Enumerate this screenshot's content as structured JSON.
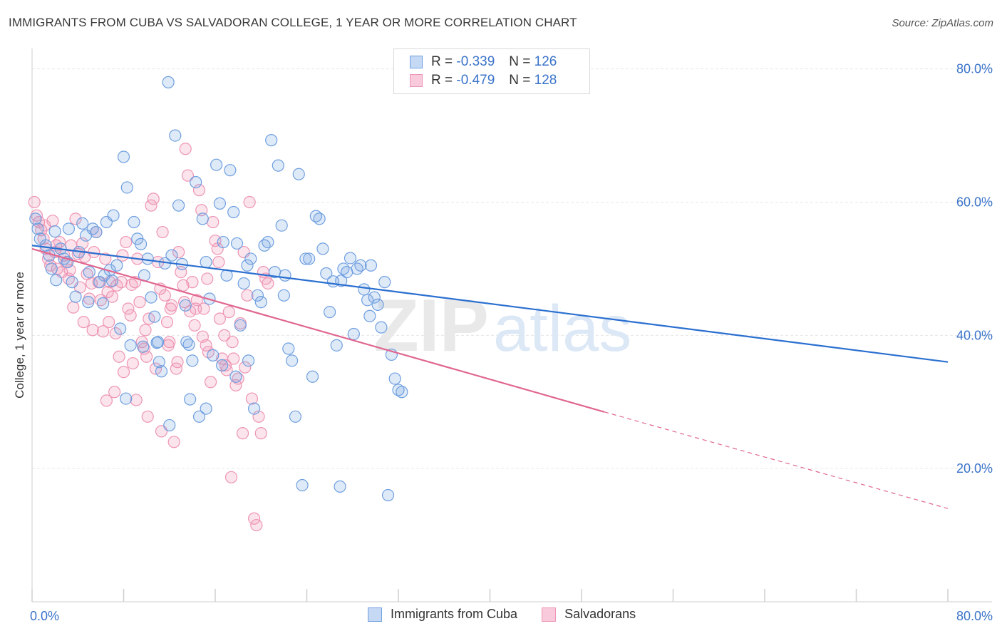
{
  "title": "IMMIGRANTS FROM CUBA VS SALVADORAN COLLEGE, 1 YEAR OR MORE CORRELATION CHART",
  "source": "Source: ZipAtlas.com",
  "watermark": {
    "zip": "ZIP",
    "atlas": "atlas"
  },
  "legend": {
    "r_label": "R =",
    "n_label": "N =",
    "series1": {
      "r": "-0.339",
      "n": "126"
    },
    "series2": {
      "r": "-0.479",
      "n": "128"
    }
  },
  "bottom_legend": {
    "series1": "Immigrants from Cuba",
    "series2": "Salvadorans"
  },
  "colors": {
    "blue": "#6f9fe0",
    "blue_line": "#2a6fd0",
    "pink": "#ee95b4",
    "pink_line": "#e0668f",
    "tick": "#3a73c9"
  },
  "chart_data": {
    "type": "scatter",
    "title": "IMMIGRANTS FROM CUBA VS SALVADORAN COLLEGE, 1 YEAR OR MORE CORRELATION CHART",
    "xlabel": "",
    "ylabel": "College, 1 year or more",
    "xlim": [
      0,
      80
    ],
    "ylim": [
      0,
      82
    ],
    "x_tick_labels": [
      "0.0%",
      "80.0%"
    ],
    "y_ticks": [
      20,
      40,
      60,
      80
    ],
    "y_tick_labels": [
      "20.0%",
      "40.0%",
      "60.0%",
      "80.0%"
    ],
    "grid": true,
    "series": [
      {
        "name": "Immigrants from Cuba",
        "r": -0.339,
        "n": 126,
        "trend": {
          "x": [
            0,
            80
          ],
          "y": [
            53.5,
            36.0
          ]
        },
        "points": [
          [
            0.3,
            57.5
          ],
          [
            0.5,
            56.0
          ],
          [
            0.7,
            54.5
          ],
          [
            1.2,
            53.5
          ],
          [
            1.5,
            52.0
          ],
          [
            1.7,
            50.0
          ],
          [
            2.1,
            48.3
          ],
          [
            2.5,
            53.0
          ],
          [
            2.8,
            51.5
          ],
          [
            3.1,
            51.0
          ],
          [
            3.5,
            48.0
          ],
          [
            3.8,
            45.8
          ],
          [
            4.1,
            52.5
          ],
          [
            4.4,
            56.8
          ],
          [
            4.7,
            55.0
          ],
          [
            5.0,
            49.5
          ],
          [
            5.3,
            56.0
          ],
          [
            5.6,
            55.5
          ],
          [
            5.9,
            48.0
          ],
          [
            6.2,
            44.8
          ],
          [
            6.5,
            57.0
          ],
          [
            6.8,
            49.8
          ],
          [
            7.1,
            58.0
          ],
          [
            7.4,
            50.5
          ],
          [
            7.7,
            41.0
          ],
          [
            8.0,
            66.8
          ],
          [
            8.3,
            62.2
          ],
          [
            8.6,
            38.5
          ],
          [
            8.9,
            57.0
          ],
          [
            9.2,
            54.5
          ],
          [
            9.5,
            53.7
          ],
          [
            9.8,
            49.0
          ],
          [
            10.1,
            51.5
          ],
          [
            10.4,
            45.7
          ],
          [
            10.7,
            42.8
          ],
          [
            11.0,
            39.0
          ],
          [
            11.3,
            34.6
          ],
          [
            11.6,
            50.8
          ],
          [
            11.9,
            78.0
          ],
          [
            12.2,
            52.0
          ],
          [
            12.5,
            70.0
          ],
          [
            12.8,
            59.5
          ],
          [
            13.1,
            50.7
          ],
          [
            13.4,
            44.5
          ],
          [
            13.7,
            38.6
          ],
          [
            14.0,
            36.2
          ],
          [
            14.3,
            63.0
          ],
          [
            14.6,
            27.8
          ],
          [
            14.9,
            57.5
          ],
          [
            15.2,
            51.0
          ],
          [
            15.5,
            45.5
          ],
          [
            15.8,
            37.0
          ],
          [
            16.1,
            65.6
          ],
          [
            16.4,
            59.8
          ],
          [
            16.7,
            54.0
          ],
          [
            17.0,
            49.0
          ],
          [
            17.3,
            64.8
          ],
          [
            17.6,
            58.5
          ],
          [
            17.9,
            53.8
          ],
          [
            18.2,
            41.5
          ],
          [
            18.5,
            47.8
          ],
          [
            18.8,
            50.5
          ],
          [
            19.1,
            51.5
          ],
          [
            19.4,
            29.0
          ],
          [
            19.7,
            46.0
          ],
          [
            20.0,
            45.0
          ],
          [
            20.3,
            53.5
          ],
          [
            20.6,
            54.0
          ],
          [
            20.9,
            69.3
          ],
          [
            21.2,
            49.5
          ],
          [
            21.5,
            65.5
          ],
          [
            21.8,
            56.5
          ],
          [
            22.1,
            49.0
          ],
          [
            22.4,
            38.0
          ],
          [
            22.7,
            36.2
          ],
          [
            23.0,
            27.8
          ],
          [
            23.3,
            64.2
          ],
          [
            23.6,
            17.5
          ],
          [
            23.9,
            51.5
          ],
          [
            24.2,
            51.5
          ],
          [
            24.5,
            33.8
          ],
          [
            24.8,
            57.9
          ],
          [
            25.1,
            57.5
          ],
          [
            25.4,
            53.0
          ],
          [
            25.7,
            49.3
          ],
          [
            26.0,
            43.5
          ],
          [
            26.3,
            48.1
          ],
          [
            26.6,
            38.5
          ],
          [
            26.9,
            17.3
          ],
          [
            27.2,
            50.0
          ],
          [
            27.5,
            49.5
          ],
          [
            27.8,
            51.6
          ],
          [
            28.1,
            40.2
          ],
          [
            28.4,
            50.0
          ],
          [
            28.7,
            50.5
          ],
          [
            29.0,
            46.9
          ],
          [
            29.3,
            45.3
          ],
          [
            29.6,
            50.5
          ],
          [
            29.9,
            45.7
          ],
          [
            30.2,
            44.6
          ],
          [
            30.5,
            41.2
          ],
          [
            30.8,
            48.0
          ],
          [
            31.1,
            16.0
          ],
          [
            31.4,
            37.1
          ],
          [
            31.7,
            33.5
          ],
          [
            32.0,
            31.8
          ],
          [
            32.3,
            31.5
          ],
          [
            8.2,
            30.5
          ],
          [
            9.7,
            38.3
          ],
          [
            10.9,
            38.9
          ],
          [
            12.0,
            26.5
          ],
          [
            13.8,
            30.4
          ],
          [
            15.2,
            29.0
          ],
          [
            16.6,
            35.5
          ],
          [
            17.8,
            33.8
          ],
          [
            6.3,
            49.0
          ],
          [
            7.0,
            48.2
          ],
          [
            3.2,
            56.0
          ],
          [
            2.0,
            55.6
          ],
          [
            4.9,
            45.0
          ],
          [
            11.1,
            36.0
          ],
          [
            13.5,
            39.0
          ],
          [
            18.9,
            36.2
          ],
          [
            22.0,
            46.0
          ],
          [
            27.0,
            48.2
          ],
          [
            29.5,
            42.9
          ]
        ]
      },
      {
        "name": "Salvadorans",
        "r": -0.479,
        "n": 128,
        "trend": {
          "x": [
            0,
            50
          ],
          "y": [
            53.0,
            28.5
          ]
        },
        "trend_extension": {
          "x": [
            50,
            80
          ],
          "y": [
            28.5,
            14.0
          ]
        },
        "points": [
          [
            0.2,
            60.0
          ],
          [
            0.4,
            58.0
          ],
          [
            0.6,
            57.0
          ],
          [
            0.8,
            55.8
          ],
          [
            1.0,
            54.5
          ],
          [
            1.2,
            53.0
          ],
          [
            1.4,
            51.5
          ],
          [
            1.6,
            50.5
          ],
          [
            1.8,
            57.2
          ],
          [
            2.0,
            52.5
          ],
          [
            2.2,
            50.0
          ],
          [
            2.4,
            54.0
          ],
          [
            2.6,
            49.5
          ],
          [
            2.8,
            52.0
          ],
          [
            3.0,
            51.0
          ],
          [
            3.2,
            48.5
          ],
          [
            3.4,
            53.5
          ],
          [
            3.6,
            44.2
          ],
          [
            3.8,
            57.5
          ],
          [
            4.0,
            52.2
          ],
          [
            4.2,
            47.2
          ],
          [
            4.4,
            53.8
          ],
          [
            4.6,
            51.8
          ],
          [
            4.8,
            49.2
          ],
          [
            5.0,
            45.5
          ],
          [
            5.2,
            47.8
          ],
          [
            5.4,
            52.5
          ],
          [
            5.6,
            55.5
          ],
          [
            5.8,
            48.0
          ],
          [
            6.0,
            45.3
          ],
          [
            6.2,
            40.6
          ],
          [
            6.4,
            51.5
          ],
          [
            6.6,
            46.5
          ],
          [
            6.8,
            48.0
          ],
          [
            7.0,
            45.8
          ],
          [
            7.2,
            31.5
          ],
          [
            7.4,
            47.5
          ],
          [
            7.6,
            36.8
          ],
          [
            7.8,
            48.0
          ],
          [
            8.0,
            34.5
          ],
          [
            8.2,
            54.0
          ],
          [
            8.4,
            44.0
          ],
          [
            8.6,
            43.0
          ],
          [
            8.8,
            35.8
          ],
          [
            9.0,
            48.0
          ],
          [
            9.2,
            51.5
          ],
          [
            9.4,
            45.0
          ],
          [
            9.6,
            39.0
          ],
          [
            9.8,
            38.0
          ],
          [
            10.0,
            36.8
          ],
          [
            10.2,
            42.5
          ],
          [
            10.4,
            59.5
          ],
          [
            10.6,
            60.5
          ],
          [
            10.8,
            35.0
          ],
          [
            11.0,
            51.0
          ],
          [
            11.2,
            47.0
          ],
          [
            11.4,
            55.5
          ],
          [
            11.6,
            46.0
          ],
          [
            11.8,
            42.0
          ],
          [
            12.0,
            39.0
          ],
          [
            12.2,
            44.5
          ],
          [
            12.4,
            24.0
          ],
          [
            12.6,
            35.0
          ],
          [
            12.8,
            52.5
          ],
          [
            13.0,
            49.5
          ],
          [
            13.2,
            47.5
          ],
          [
            13.4,
            68.0
          ],
          [
            13.6,
            64.0
          ],
          [
            13.8,
            43.6
          ],
          [
            14.0,
            48.0
          ],
          [
            14.2,
            41.5
          ],
          [
            14.4,
            45.3
          ],
          [
            14.6,
            61.8
          ],
          [
            14.8,
            58.8
          ],
          [
            15.0,
            44.0
          ],
          [
            15.2,
            38.5
          ],
          [
            15.4,
            37.5
          ],
          [
            15.6,
            33.0
          ],
          [
            15.8,
            57.0
          ],
          [
            16.0,
            54.2
          ],
          [
            16.2,
            53.0
          ],
          [
            16.4,
            42.5
          ],
          [
            16.6,
            36.5
          ],
          [
            16.8,
            40.0
          ],
          [
            17.0,
            34.8
          ],
          [
            17.2,
            43.5
          ],
          [
            17.4,
            18.7
          ],
          [
            17.6,
            36.5
          ],
          [
            17.8,
            32.5
          ],
          [
            18.0,
            33.5
          ],
          [
            18.2,
            41.8
          ],
          [
            18.4,
            25.3
          ],
          [
            18.6,
            35.2
          ],
          [
            18.8,
            46.0
          ],
          [
            19.0,
            60.0
          ],
          [
            19.2,
            30.5
          ],
          [
            19.4,
            12.5
          ],
          [
            19.6,
            11.5
          ],
          [
            19.8,
            27.8
          ],
          [
            20.0,
            25.3
          ],
          [
            20.2,
            49.5
          ],
          [
            20.4,
            48.5
          ],
          [
            20.6,
            47.8
          ],
          [
            6.5,
            30.2
          ],
          [
            7.3,
            40.3
          ],
          [
            9.1,
            30.3
          ],
          [
            10.1,
            27.8
          ],
          [
            11.3,
            25.6
          ],
          [
            4.5,
            42.0
          ],
          [
            5.3,
            40.8
          ],
          [
            3.3,
            49.8
          ],
          [
            2.1,
            53.5
          ],
          [
            1.1,
            56.5
          ],
          [
            13.3,
            45.0
          ],
          [
            14.3,
            44.0
          ],
          [
            15.3,
            48.5
          ],
          [
            16.3,
            51.0
          ],
          [
            18.5,
            52.5
          ],
          [
            12.1,
            44.0
          ],
          [
            8.7,
            47.6
          ],
          [
            7.9,
            52.0
          ],
          [
            6.7,
            42.0
          ],
          [
            9.9,
            40.8
          ],
          [
            11.9,
            38.5
          ],
          [
            14.9,
            39.8
          ],
          [
            16.9,
            35.5
          ],
          [
            17.5,
            39.0
          ],
          [
            12.7,
            36.0
          ]
        ]
      }
    ]
  }
}
